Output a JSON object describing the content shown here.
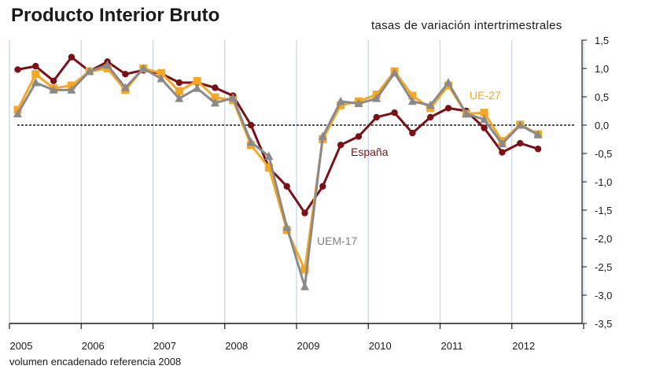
{
  "chart_data": {
    "type": "line",
    "title": "Producto Interior Bruto",
    "subtitle": "tasas de variación intertrimestrales",
    "footnote": "volumen encadenado referencia 2008",
    "year_labels": [
      "2005",
      "2006",
      "2007",
      "2008",
      "2009",
      "2010",
      "2011",
      "2012"
    ],
    "ylim": [
      -3.5,
      1.5
    ],
    "y_ticks": [
      "1,5",
      "1,0",
      "0,5",
      "0,0",
      "-0,5",
      "-1,0",
      "-1,5",
      "-2,0",
      "-2,5",
      "-3,0",
      "-3,5"
    ],
    "quarters_start": "2005T1",
    "series": [
      {
        "name": "España",
        "label": "España",
        "color": "#7b1116",
        "marker": "circle",
        "values": [
          0.98,
          1.04,
          0.78,
          1.2,
          0.95,
          1.12,
          0.9,
          0.97,
          0.91,
          0.75,
          0.75,
          0.66,
          0.52,
          0.0,
          -0.75,
          -1.08,
          -1.55,
          -1.08,
          -0.35,
          -0.2,
          0.14,
          0.22,
          -0.14,
          0.14,
          0.3,
          0.25,
          -0.05,
          -0.48,
          -0.32,
          -0.42
        ]
      },
      {
        "name": "UE-27",
        "label": "UE-27",
        "color": "#f5a623",
        "marker": "square",
        "values": [
          0.27,
          0.9,
          0.65,
          0.7,
          0.95,
          1.0,
          0.62,
          1.0,
          0.92,
          0.6,
          0.78,
          0.49,
          0.44,
          -0.35,
          -0.75,
          -1.85,
          -2.55,
          -0.25,
          0.35,
          0.42,
          0.54,
          0.95,
          0.52,
          0.3,
          0.7,
          0.2,
          0.22,
          -0.28,
          0.01,
          -0.16
        ]
      },
      {
        "name": "UEM-17",
        "label": "UEM-17",
        "color": "#8a8a8a",
        "marker": "triangle",
        "values": [
          0.2,
          0.75,
          0.62,
          0.62,
          0.95,
          1.06,
          0.66,
          1.0,
          0.82,
          0.47,
          0.65,
          0.39,
          0.48,
          -0.3,
          -0.55,
          -1.8,
          -2.85,
          -0.2,
          0.42,
          0.38,
          0.47,
          0.92,
          0.42,
          0.35,
          0.75,
          0.2,
          0.1,
          -0.33,
          0.0,
          -0.17
        ]
      }
    ]
  }
}
